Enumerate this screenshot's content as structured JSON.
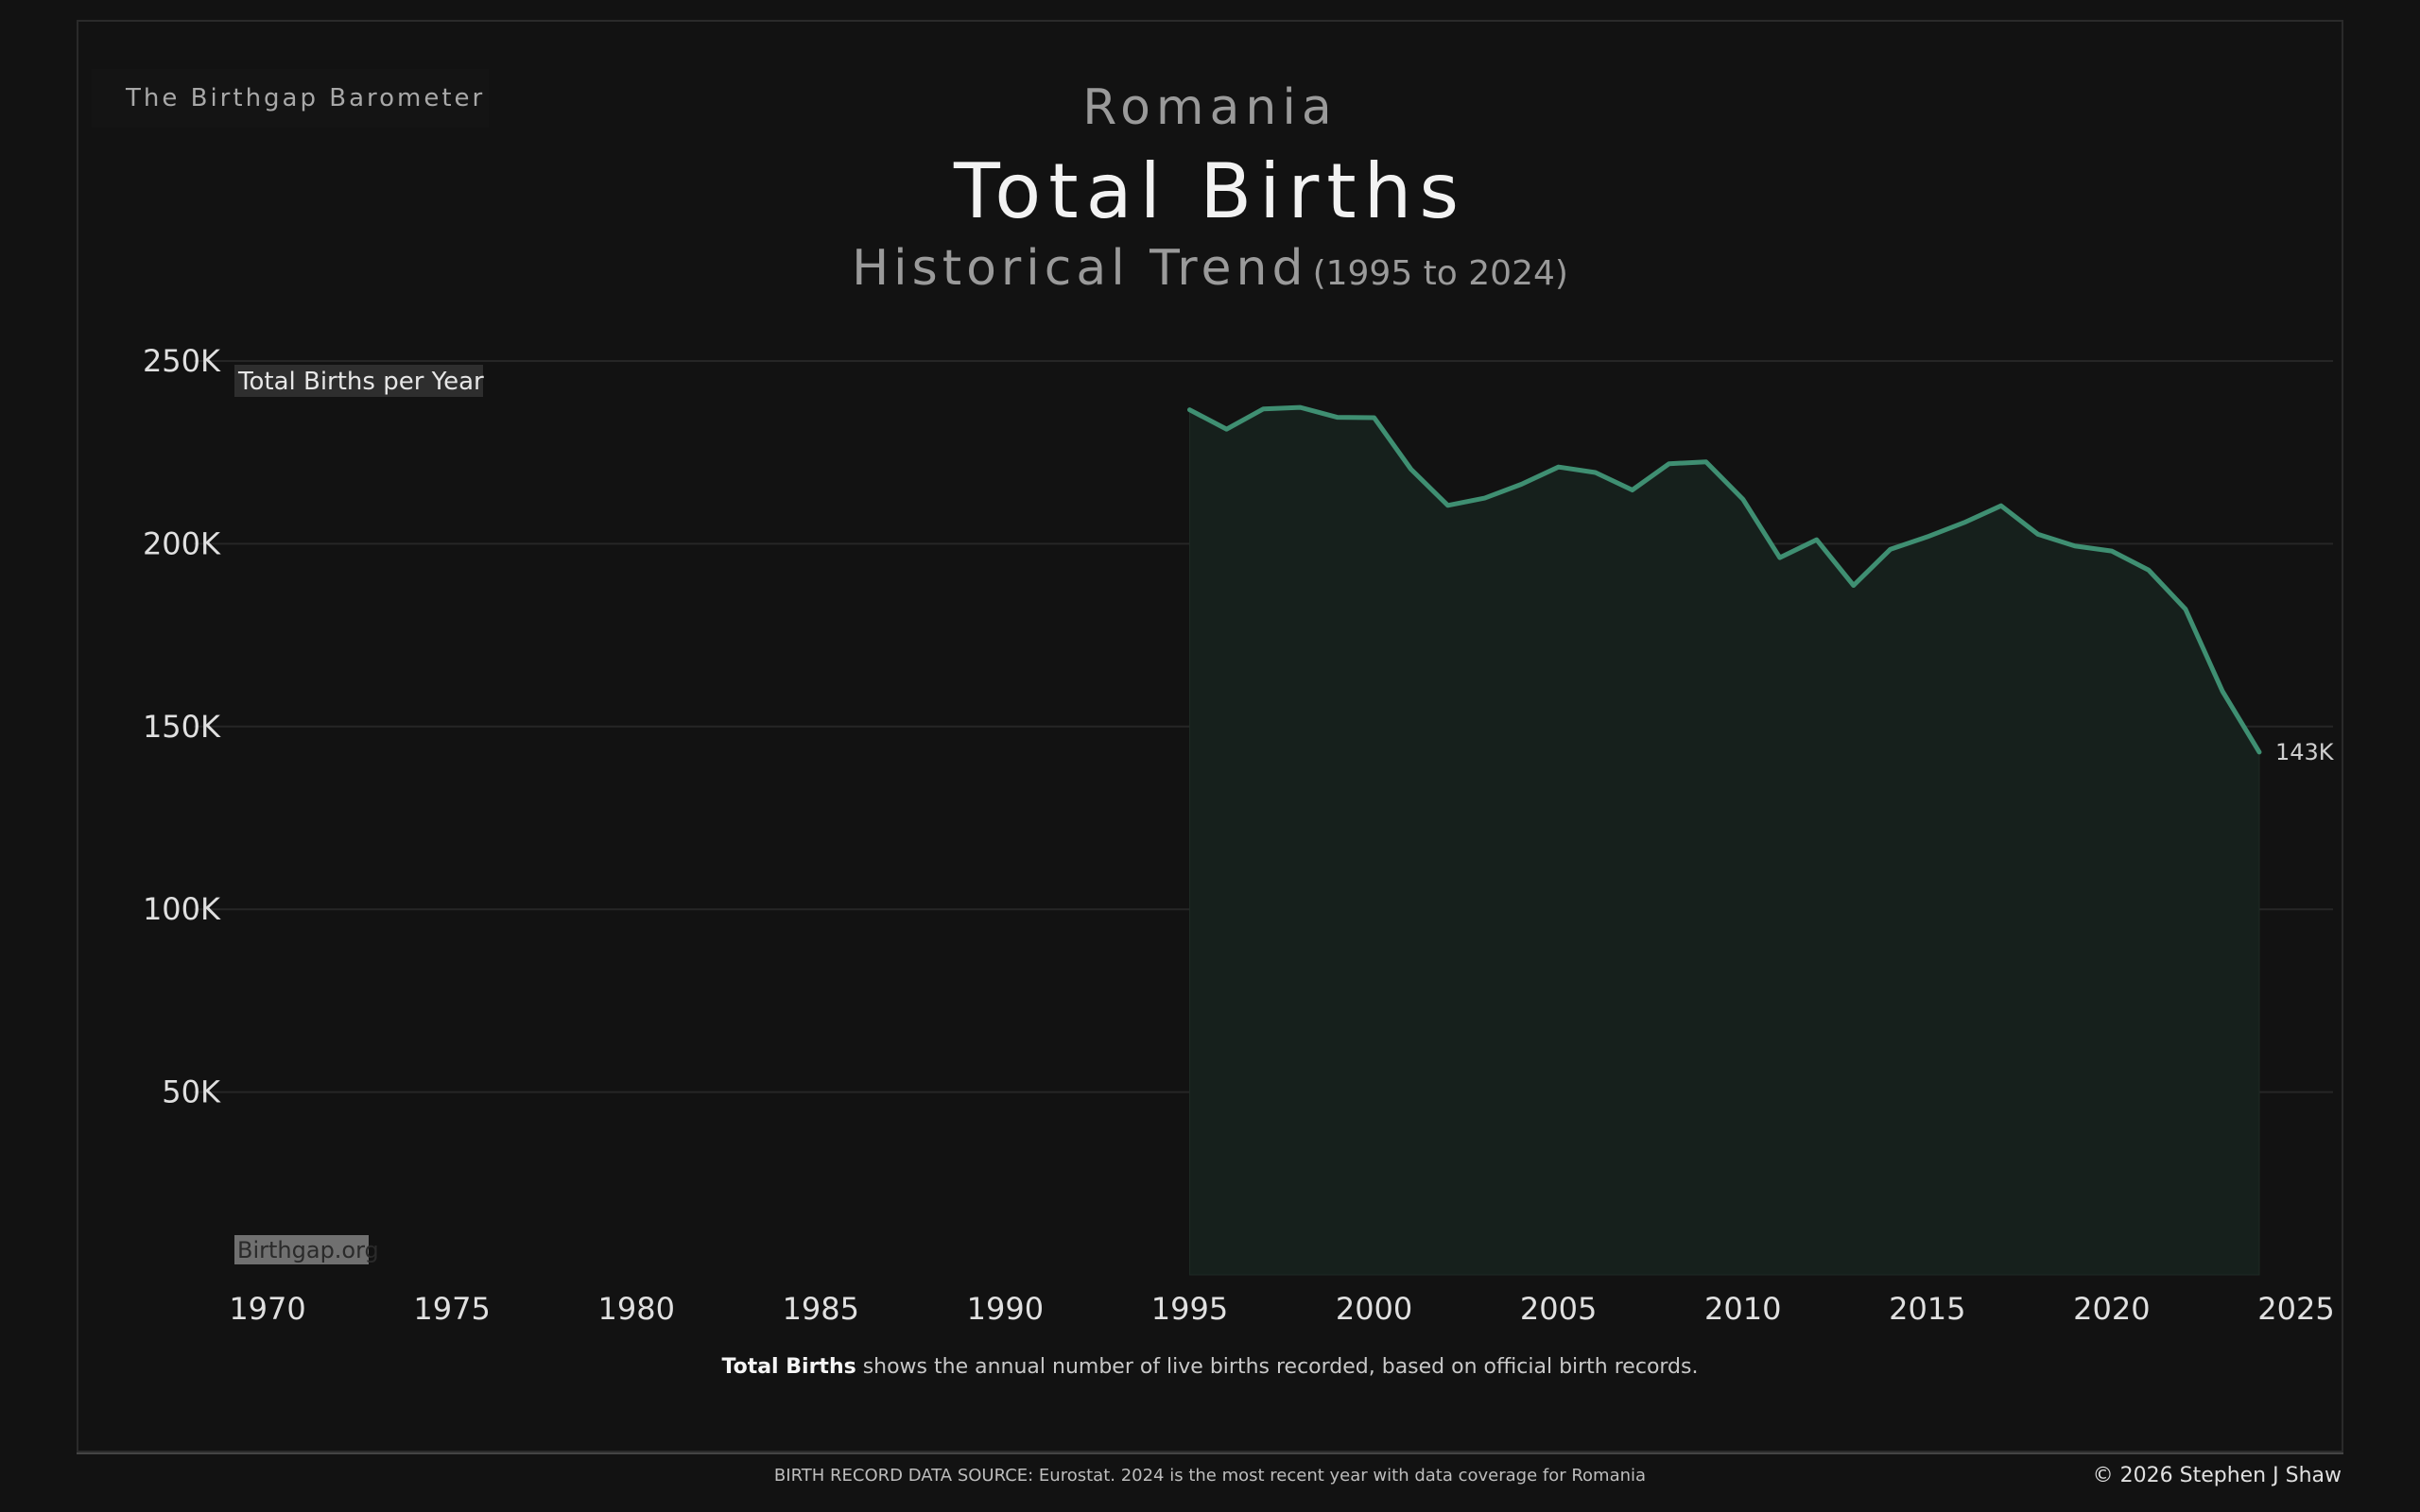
{
  "brand": "The Birthgap Barometer",
  "country": "Romania",
  "title": "Total Births",
  "subtitle_main": "Historical Trend",
  "subtitle_range": "(1995 to 2024)",
  "caption_bold": "Total Births",
  "caption_rest": " shows the annual number of live births recorded, based on official birth records.",
  "source": "BIRTH RECORD DATA SOURCE: Eurostat. 2024 is the most recent year with data coverage for Romania",
  "copyright": "© 2026 Stephen J Shaw",
  "colors": {
    "background": "#121212",
    "line": "#3f8f72",
    "area": "#16201c",
    "grid": "#262626"
  },
  "chart_data": {
    "type": "area",
    "ylabel": "Total Births per Year",
    "watermark": "Birthgap.org",
    "end_label": "143K",
    "xlim": [
      1968,
      2026
    ],
    "ylim": [
      0,
      250000
    ],
    "x_ticks": [
      1970,
      1975,
      1980,
      1985,
      1990,
      1995,
      2000,
      2005,
      2010,
      2015,
      2020,
      2025
    ],
    "y_ticks": [
      {
        "value": 250000,
        "label": "250K"
      },
      {
        "value": 200000,
        "label": "200K"
      },
      {
        "value": 150000,
        "label": "150K"
      },
      {
        "value": 100000,
        "label": "100K"
      },
      {
        "value": 50000,
        "label": "50K"
      }
    ],
    "grid": true,
    "series": [
      {
        "x": [
          1995,
          1996,
          1997,
          1998,
          1999,
          2000,
          2001,
          2002,
          2003,
          2004,
          2005,
          2006,
          2007,
          2008,
          2009,
          2010,
          2011,
          2012,
          2013,
          2014,
          2015,
          2016,
          2017,
          2018,
          2019,
          2020,
          2021,
          2022,
          2023,
          2024
        ],
        "y": [
          236640,
          231350,
          236890,
          237300,
          234600,
          234500,
          220400,
          210500,
          212500,
          216300,
          221000,
          219500,
          214700,
          221900,
          222400,
          212200,
          196200,
          201100,
          188600,
          198500,
          201900,
          205800,
          210400,
          202600,
          199400,
          198000,
          192800,
          182100,
          159700,
          143000
        ]
      }
    ]
  }
}
